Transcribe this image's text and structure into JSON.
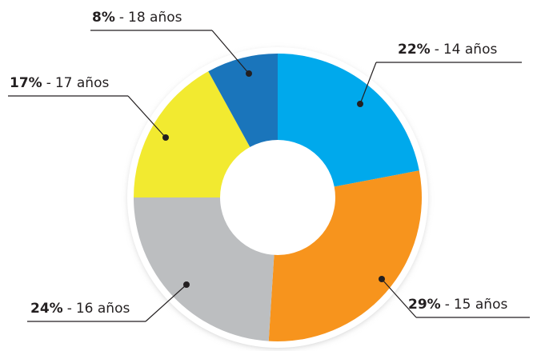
{
  "chart_data": {
    "type": "donut",
    "categories": [
      "14 años",
      "15 años",
      "16 años",
      "17 años",
      "18 años"
    ],
    "values": [
      22,
      29,
      24,
      17,
      8
    ],
    "value_labels": [
      "22%",
      "29%",
      "24%",
      "17%",
      "8%"
    ],
    "label_separator": "-",
    "colors": [
      "#00a9ec",
      "#f7941d",
      "#bcbec0",
      "#f2ea30",
      "#1a75bb"
    ]
  }
}
